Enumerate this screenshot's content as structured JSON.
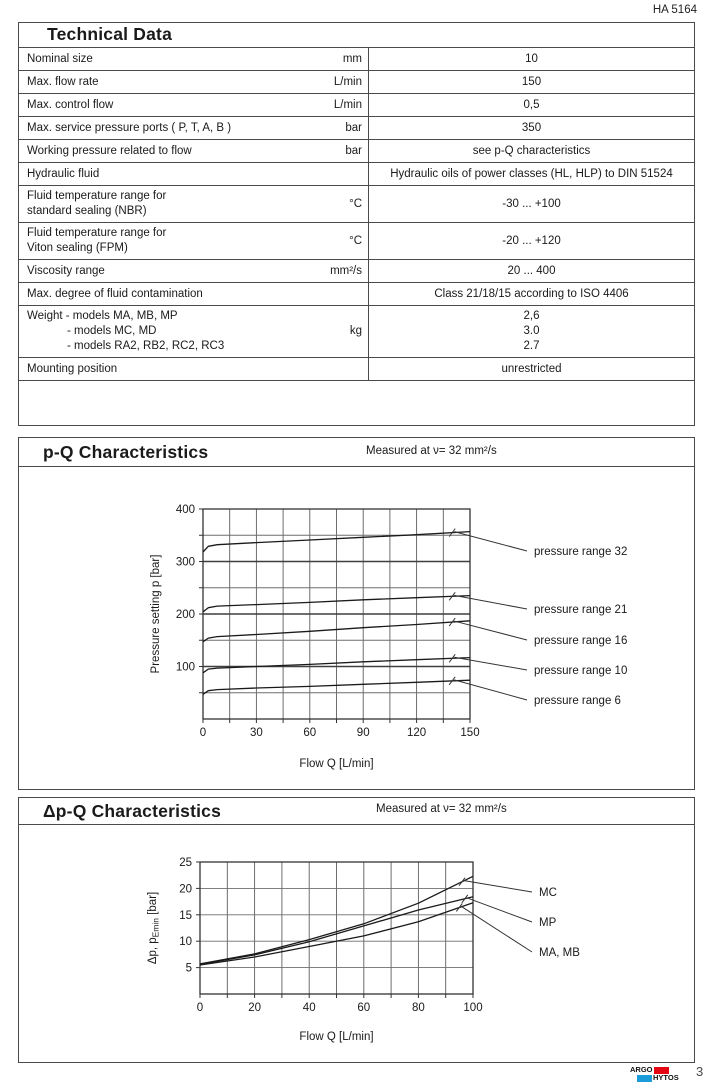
{
  "header": {
    "doc_ref": "HA 5164"
  },
  "technical_data": {
    "title": "Technical Data",
    "rows": [
      {
        "param": [
          "Nominal size"
        ],
        "unit": "mm",
        "values": [
          "10"
        ]
      },
      {
        "param": [
          "Max. flow rate"
        ],
        "unit": "L/min",
        "values": [
          "150"
        ]
      },
      {
        "param": [
          "Max. control flow"
        ],
        "unit": "L/min",
        "values": [
          "0,5"
        ]
      },
      {
        "param": [
          "Max. service pressure ports ( P, T, A, B )"
        ],
        "unit": "bar",
        "values": [
          "350"
        ]
      },
      {
        "param": [
          "Working pressure related to flow"
        ],
        "unit": "bar",
        "values": [
          "see p-Q characteristics"
        ]
      },
      {
        "param": [
          "Hydraulic fluid"
        ],
        "unit": "",
        "values": [
          "Hydraulic oils of power classes (HL, HLP) to DIN 51524"
        ]
      },
      {
        "param": [
          "Fluid temperature range for",
          "standard sealing (NBR)"
        ],
        "unit": "°C",
        "values": [
          "-30 ... +100"
        ]
      },
      {
        "param": [
          "Fluid temperature range for",
          "Viton sealing (FPM)"
        ],
        "unit": "°C",
        "values": [
          "-20 ... +120"
        ]
      },
      {
        "param": [
          "Viscosity range"
        ],
        "unit": "mm²/s",
        "values": [
          "20 ... 400"
        ]
      },
      {
        "param": [
          "Max. degree of fluid contamination"
        ],
        "unit": "",
        "values": [
          "Class 21/18/15 according to ISO 4406"
        ]
      },
      {
        "param": [
          "Weight - models MA, MB, MP",
          "- models MC, MD",
          "- models RA2, RB2, RC2, RC3"
        ],
        "indent_continuation": true,
        "unit": "kg",
        "values": [
          "2,6",
          "3.0",
          "2.7"
        ]
      },
      {
        "param": [
          "Mounting position"
        ],
        "unit": "",
        "values": [
          "unrestricted"
        ]
      }
    ]
  },
  "chart_data": [
    {
      "type": "line",
      "title": "p-Q Characteristics",
      "subtitle": "Measured at ν= 32 mm²/s",
      "xlabel": "Flow Q [L/min]",
      "ylabel": "Pressure setting p [bar]",
      "xlim": [
        0,
        150
      ],
      "ylim": [
        0,
        400
      ],
      "x_grid_step": 15,
      "y_grid_step": 50,
      "x_major_ticks": [
        0,
        30,
        60,
        90,
        120,
        150
      ],
      "y_major_ticks": [
        100,
        200,
        300,
        400
      ],
      "y_major_dark": true,
      "grid": true,
      "legend_position": "right",
      "series": [
        {
          "name": "pressure range 32",
          "points": [
            [
              0,
              318
            ],
            [
              3,
              329
            ],
            [
              8,
              332
            ],
            [
              30,
              336
            ],
            [
              60,
              341
            ],
            [
              90,
              346
            ],
            [
              120,
              351
            ],
            [
              150,
              357
            ]
          ]
        },
        {
          "name": "pressure range 21",
          "points": [
            [
              0,
              204
            ],
            [
              3,
              212
            ],
            [
              8,
              215
            ],
            [
              30,
              218
            ],
            [
              60,
              222
            ],
            [
              90,
              227
            ],
            [
              120,
              231
            ],
            [
              150,
              235
            ]
          ]
        },
        {
          "name": "pressure range 16",
          "points": [
            [
              0,
              147
            ],
            [
              3,
              154
            ],
            [
              8,
              157
            ],
            [
              30,
              161
            ],
            [
              60,
              167
            ],
            [
              90,
              174
            ],
            [
              120,
              180
            ],
            [
              150,
              187
            ]
          ]
        },
        {
          "name": "pressure range 10",
          "points": [
            [
              0,
              88
            ],
            [
              3,
              95
            ],
            [
              8,
              97
            ],
            [
              30,
              100
            ],
            [
              60,
              104
            ],
            [
              90,
              109
            ],
            [
              120,
              113
            ],
            [
              150,
              117
            ]
          ]
        },
        {
          "name": "pressure range 6",
          "points": [
            [
              0,
              47
            ],
            [
              3,
              54
            ],
            [
              8,
              56
            ],
            [
              30,
              59
            ],
            [
              60,
              62
            ],
            [
              90,
              66
            ],
            [
              120,
              70
            ],
            [
              150,
              74
            ]
          ]
        }
      ]
    },
    {
      "type": "line",
      "title": "Δp-Q Characteristics",
      "subtitle": "Measured at ν= 32 mm²/s",
      "xlabel": "Flow Q [L/min]",
      "ylabel": "Δp, pEmin [bar]",
      "ylabel_parts": [
        [
          "Δp, p",
          "n"
        ],
        [
          "Emin",
          "sub"
        ],
        [
          " [bar]",
          "n"
        ]
      ],
      "xlim": [
        0,
        100
      ],
      "ylim": [
        0,
        25
      ],
      "x_grid_step": 10,
      "y_grid_step": 5,
      "x_major_ticks": [
        0,
        20,
        40,
        60,
        80,
        100
      ],
      "y_major_ticks": [
        5,
        10,
        15,
        20,
        25
      ],
      "y_major_dark": false,
      "grid": true,
      "legend_position": "right",
      "series": [
        {
          "name": "MC",
          "points": [
            [
              0,
              5.7
            ],
            [
              20,
              7.6
            ],
            [
              40,
              10.3
            ],
            [
              60,
              13.3
            ],
            [
              80,
              17.2
            ],
            [
              100,
              22.3
            ]
          ]
        },
        {
          "name": "MP",
          "points": [
            [
              0,
              5.6
            ],
            [
              20,
              7.4
            ],
            [
              40,
              9.9
            ],
            [
              60,
              12.9
            ],
            [
              80,
              15.9
            ],
            [
              100,
              18.4
            ]
          ]
        },
        {
          "name": "MA, MB",
          "points": [
            [
              0,
              5.5
            ],
            [
              20,
              7.0
            ],
            [
              40,
              9.0
            ],
            [
              60,
              11.0
            ],
            [
              80,
              13.7
            ],
            [
              100,
              17.3
            ]
          ]
        }
      ]
    }
  ],
  "footer": {
    "logo": {
      "line1": "ARGO",
      "line2": "HYTOS",
      "red": "#e30613",
      "blue": "#1a9dd9"
    },
    "page_number": "3"
  }
}
